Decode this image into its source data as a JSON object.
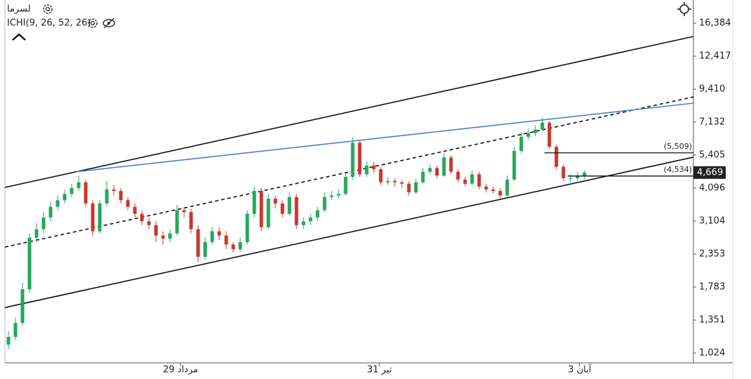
{
  "chart_data": {
    "type": "candlestick",
    "symbol": "لسرما",
    "indicator": "ICHI(9, 26, 52, 26)",
    "log_scale": true,
    "grid": false,
    "up_color": "#26a65b",
    "down_color": "#c8372d",
    "xlim": [
      -0.5,
      97.5
    ],
    "xticks": [
      {
        "value": 24.5,
        "label": "29 مرداد"
      },
      {
        "value": 52.8,
        "label": "31 تیر"
      },
      {
        "value": 81.3,
        "label": "3 آبان"
      }
    ],
    "ylim": [
      943,
      19906
    ],
    "yticks": [
      {
        "value": 1024,
        "label": "1,024"
      },
      {
        "value": 1351,
        "label": "1,351"
      },
      {
        "value": 1783,
        "label": "1,783"
      },
      {
        "value": 2353,
        "label": "2,353"
      },
      {
        "value": 3104,
        "label": "3,104"
      },
      {
        "value": 4096,
        "label": "4,096"
      },
      {
        "value": 5405,
        "label": "5,405"
      },
      {
        "value": 7132,
        "label": "7,132"
      },
      {
        "value": 9410,
        "label": "9,410"
      },
      {
        "value": 12417,
        "label": "12,417"
      },
      {
        "value": 16384,
        "label": "16,384"
      }
    ],
    "open": [
      1100,
      1173,
      1319,
      1750,
      2700,
      2900,
      3200,
      3500,
      3700,
      3900,
      4100,
      4300,
      3600,
      2850,
      3600,
      4050,
      4000,
      3700,
      3500,
      3300,
      3100,
      3000,
      2750,
      2680,
      2800,
      3400,
      3350,
      2900,
      2300,
      2600,
      2850,
      2750,
      2550,
      2450,
      2600,
      3300,
      4000,
      2950,
      3750,
      3600,
      3300,
      3800,
      3000,
      3100,
      3200,
      3400,
      3800,
      3850,
      3900,
      4500,
      6000,
      4600,
      4950,
      4800,
      4300,
      4350,
      4300,
      4250,
      3950,
      4300,
      4700,
      4850,
      4550,
      5300,
      4700,
      4400,
      4250,
      4600,
      4150,
      4050,
      4000,
      3850,
      4400,
      5600,
      6300,
      6500,
      6700,
      7100,
      5800,
      4900,
      4450,
      4450,
      4550
    ],
    "high": [
      1230,
      1380,
      1850,
      2800,
      3050,
      3350,
      3650,
      3850,
      4050,
      4250,
      4550,
      4400,
      3700,
      3700,
      4350,
      4200,
      4100,
      3800,
      3600,
      3400,
      3200,
      3100,
      2850,
      2900,
      3550,
      3500,
      3450,
      3000,
      2700,
      2950,
      2950,
      2850,
      2600,
      2700,
      3400,
      4150,
      4100,
      3900,
      3850,
      3700,
      3950,
      3900,
      3200,
      3300,
      3500,
      3950,
      4000,
      4050,
      4650,
      6300,
      6100,
      5150,
      5100,
      4900,
      4500,
      4450,
      4400,
      4350,
      4450,
      4850,
      5000,
      4950,
      5500,
      5400,
      4800,
      4500,
      4750,
      4700,
      4250,
      4150,
      4100,
      4550,
      5800,
      6550,
      6750,
      6950,
      7400,
      7200,
      5900,
      5000,
      4600,
      4700,
      4750
    ],
    "low": [
      1060,
      1140,
      1290,
      1700,
      2600,
      2800,
      3100,
      3400,
      3600,
      3800,
      4000,
      3500,
      2750,
      2800,
      3500,
      3850,
      3600,
      3400,
      3200,
      3000,
      2900,
      2600,
      2550,
      2600,
      2750,
      3200,
      2800,
      2200,
      2250,
      2550,
      2650,
      2450,
      2380,
      2400,
      2550,
      3200,
      2850,
      2900,
      3450,
      3200,
      3250,
      2900,
      2900,
      3000,
      3100,
      3350,
      3700,
      3750,
      3850,
      4400,
      4500,
      4500,
      4650,
      4200,
      4200,
      4150,
      4100,
      3850,
      3900,
      4250,
      4600,
      4450,
      4500,
      4600,
      4300,
      4150,
      4200,
      4050,
      3950,
      3900,
      3750,
      3800,
      4350,
      5500,
      6150,
      6350,
      6600,
      5700,
      4800,
      4350,
      4300,
      4350,
      4400
    ],
    "close": [
      1173,
      1319,
      1750,
      2700,
      2900,
      3200,
      3500,
      3700,
      3900,
      4100,
      4300,
      3600,
      2850,
      3600,
      4050,
      4000,
      3700,
      3500,
      3300,
      3100,
      3000,
      2750,
      2680,
      2800,
      3400,
      3350,
      2900,
      2300,
      2600,
      2850,
      2750,
      2550,
      2450,
      2600,
      3300,
      4000,
      2950,
      3750,
      3600,
      3300,
      3800,
      3000,
      3100,
      3200,
      3400,
      3800,
      3850,
      3900,
      4500,
      6000,
      4600,
      4950,
      4800,
      4300,
      4350,
      4300,
      4250,
      3950,
      4300,
      4700,
      4850,
      4550,
      5300,
      4700,
      4400,
      4250,
      4600,
      4150,
      4050,
      4000,
      3850,
      4400,
      5600,
      6300,
      6500,
      6700,
      7100,
      5800,
      4900,
      4450,
      4450,
      4550,
      4669
    ],
    "lines": [
      {
        "x": [
          -0.5,
          97.5
        ],
        "y": [
          4121,
          14650
        ],
        "color": "#111111",
        "style": "solid"
      },
      {
        "x": [
          -0.5,
          97.5
        ],
        "y": [
          1501,
          5312
        ],
        "color": "#111111",
        "style": "solid"
      },
      {
        "x": [
          -0.5,
          97.5
        ],
        "y": [
          2496,
          8815
        ],
        "color": "#111111",
        "style": "dashed"
      },
      {
        "x": [
          9.6,
          97.5
        ],
        "y": [
          4696,
          8363
        ],
        "color": "#4a7fd4",
        "style": "solid"
      }
    ],
    "levels": [
      {
        "value": 5509,
        "label": "(5,509)",
        "x_start": 76.3
      },
      {
        "value": 4534,
        "label": "(4,534)",
        "x_start": 79.6
      }
    ],
    "last_price": {
      "value": 4669,
      "label": "4,669"
    }
  }
}
